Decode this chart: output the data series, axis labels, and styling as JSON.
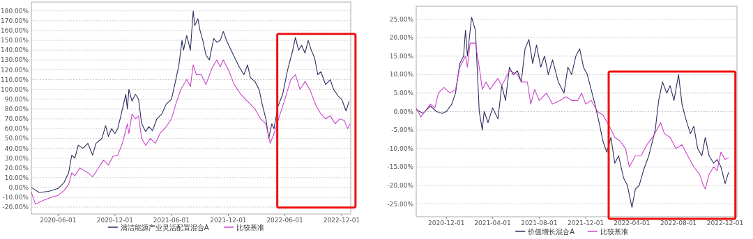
{
  "chart_data": [
    {
      "type": "line",
      "xlim": [
        "2020-03-07",
        "2022-12-30"
      ],
      "ylim": [
        -27,
        189
      ],
      "xticks": [
        "2020-06-01",
        "2020-12-01",
        "2021-06-01",
        "2021-12-01",
        "2022-06-01",
        "2022-12-01"
      ],
      "yticks": [
        {
          "value": -20,
          "label": "-20.00%"
        },
        {
          "value": -10,
          "label": "-10.00%"
        },
        {
          "value": 0,
          "label": "0.00%"
        },
        {
          "value": 10,
          "label": "10.00%"
        },
        {
          "value": 20,
          "label": "20.00%"
        },
        {
          "value": 30,
          "label": "30.00%"
        },
        {
          "value": 40,
          "label": "40.00%"
        },
        {
          "value": 50,
          "label": "50.00%"
        },
        {
          "value": 60,
          "label": "60.00%"
        },
        {
          "value": 70,
          "label": "70.00%"
        },
        {
          "value": 80,
          "label": "80.00%"
        },
        {
          "value": 90,
          "label": "90.00%"
        },
        {
          "value": 100,
          "label": "100.00%"
        },
        {
          "value": 110,
          "label": "110.00%"
        },
        {
          "value": 120,
          "label": "120.00%"
        },
        {
          "value": 130,
          "label": "130.00%"
        },
        {
          "value": 140,
          "label": "140.00%"
        },
        {
          "value": 150,
          "label": "150.00%"
        },
        {
          "value": 160,
          "label": "160.00%"
        },
        {
          "value": 170,
          "label": "170.00%"
        },
        {
          "value": 180,
          "label": "180.00%"
        }
      ],
      "grid": "y",
      "legend": "bottom",
      "series": [
        {
          "name": "清洁能源产业灵活配置混合A",
          "color": "#2d2d5f",
          "x": [
            "2020-03-07",
            "2020-04-01",
            "2020-05-01",
            "2020-06-01",
            "2020-06-20",
            "2020-07-05",
            "2020-07-15",
            "2020-07-25",
            "2020-08-05",
            "2020-08-20",
            "2020-09-05",
            "2020-09-20",
            "2020-10-01",
            "2020-10-20",
            "2020-11-01",
            "2020-11-10",
            "2020-11-20",
            "2020-12-01",
            "2020-12-10",
            "2020-12-20",
            "2021-01-05",
            "2021-01-10",
            "2021-01-15",
            "2021-01-25",
            "2021-02-05",
            "2021-02-15",
            "2021-02-25",
            "2021-03-10",
            "2021-03-20",
            "2021-04-01",
            "2021-04-15",
            "2021-05-01",
            "2021-05-15",
            "2021-06-01",
            "2021-06-15",
            "2021-06-25",
            "2021-07-05",
            "2021-07-10",
            "2021-07-20",
            "2021-08-01",
            "2021-08-10",
            "2021-08-15",
            "2021-08-25",
            "2021-09-01",
            "2021-09-10",
            "2021-09-20",
            "2021-10-01",
            "2021-10-15",
            "2021-10-25",
            "2021-11-05",
            "2021-11-15",
            "2021-11-25",
            "2021-12-10",
            "2021-12-25",
            "2022-01-05",
            "2022-01-20",
            "2022-02-01",
            "2022-02-10",
            "2022-02-25",
            "2022-03-10",
            "2022-03-20",
            "2022-04-01",
            "2022-04-10",
            "2022-04-20",
            "2022-04-27",
            "2022-05-10",
            "2022-05-25",
            "2022-06-10",
            "2022-06-25",
            "2022-07-05",
            "2022-07-15",
            "2022-07-25",
            "2022-08-05",
            "2022-08-15",
            "2022-08-25",
            "2022-09-05",
            "2022-09-15",
            "2022-09-25",
            "2022-10-10",
            "2022-10-25",
            "2022-11-05",
            "2022-11-20",
            "2022-12-01",
            "2022-12-15",
            "2022-12-25"
          ],
          "values": [
            0,
            -5,
            -4,
            -1,
            5,
            15,
            33,
            30,
            43,
            40,
            45,
            33,
            45,
            50,
            63,
            52,
            60,
            55,
            60,
            73,
            95,
            80,
            100,
            88,
            95,
            90,
            65,
            57,
            62,
            58,
            70,
            75,
            85,
            90,
            110,
            125,
            150,
            140,
            155,
            140,
            180,
            165,
            172,
            160,
            150,
            135,
            130,
            152,
            148,
            150,
            159,
            150,
            140,
            130,
            123,
            115,
            125,
            112,
            108,
            100,
            85,
            70,
            50,
            65,
            60,
            83,
            95,
            120,
            138,
            153,
            140,
            145,
            137,
            150,
            140,
            132,
            115,
            118,
            105,
            110,
            100,
            93,
            90,
            78,
            88
          ]
        },
        {
          "name": "比较基准",
          "color": "#cc44cc",
          "x": [
            "2020-03-07",
            "2020-03-20",
            "2020-04-15",
            "2020-05-10",
            "2020-06-01",
            "2020-06-20",
            "2020-07-05",
            "2020-07-15",
            "2020-07-25",
            "2020-08-10",
            "2020-09-05",
            "2020-09-20",
            "2020-10-05",
            "2020-10-25",
            "2020-11-10",
            "2020-11-25",
            "2020-12-10",
            "2020-12-25",
            "2021-01-10",
            "2021-01-15",
            "2021-01-25",
            "2021-02-05",
            "2021-02-15",
            "2021-02-25",
            "2021-03-10",
            "2021-03-25",
            "2021-04-10",
            "2021-04-25",
            "2021-05-15",
            "2021-06-01",
            "2021-06-15",
            "2021-07-01",
            "2021-07-20",
            "2021-08-01",
            "2021-08-10",
            "2021-08-20",
            "2021-09-05",
            "2021-09-20",
            "2021-10-10",
            "2021-10-25",
            "2021-11-05",
            "2021-11-15",
            "2021-12-01",
            "2021-12-20",
            "2022-01-10",
            "2022-01-25",
            "2022-02-10",
            "2022-02-25",
            "2022-03-15",
            "2022-04-01",
            "2022-04-15",
            "2022-04-27",
            "2022-05-10",
            "2022-06-01",
            "2022-06-20",
            "2022-07-05",
            "2022-07-20",
            "2022-08-05",
            "2022-08-20",
            "2022-09-10",
            "2022-09-25",
            "2022-10-10",
            "2022-10-25",
            "2022-11-10",
            "2022-11-25",
            "2022-12-10",
            "2022-12-20",
            "2022-12-28"
          ],
          "values": [
            -5,
            -17,
            -13,
            -10,
            -8,
            -3,
            3,
            15,
            12,
            20,
            15,
            11,
            18,
            28,
            23,
            32,
            33,
            45,
            65,
            55,
            75,
            70,
            73,
            50,
            43,
            50,
            45,
            55,
            62,
            70,
            85,
            100,
            110,
            103,
            125,
            115,
            115,
            105,
            122,
            130,
            123,
            130,
            120,
            105,
            95,
            90,
            85,
            80,
            70,
            65,
            45,
            55,
            68,
            90,
            110,
            115,
            100,
            108,
            100,
            83,
            75,
            70,
            73,
            65,
            70,
            68,
            60,
            65
          ]
        }
      ]
    },
    {
      "type": "line",
      "xlim": [
        "2020-09-13",
        "2023-01-01"
      ],
      "ylim": [
        -28.5,
        28.5
      ],
      "xticks": [
        "2020-12-01",
        "2021-04-01",
        "2021-08-01",
        "2021-12-01",
        "2022-04-01",
        "2022-08-01",
        "2022-12-01"
      ],
      "yticks": [
        {
          "value": -25,
          "label": "-25.00%"
        },
        {
          "value": -20,
          "label": "-20.00%"
        },
        {
          "value": -15,
          "label": "-15.00%"
        },
        {
          "value": -10,
          "label": "-10.00%"
        },
        {
          "value": -5,
          "label": "-5.00%"
        },
        {
          "value": 0,
          "label": "0.00%"
        },
        {
          "value": 5,
          "label": "5.00%"
        },
        {
          "value": 10,
          "label": "10.00%"
        },
        {
          "value": 15,
          "label": "15.00%"
        },
        {
          "value": 20,
          "label": "20.00%"
        },
        {
          "value": 25,
          "label": "25.00%"
        }
      ],
      "grid": "y",
      "legend": "bottom",
      "series": [
        {
          "name": "价值增长混合A",
          "color": "#2d2d5f",
          "x": [
            "2020-09-13",
            "2020-10-01",
            "2020-10-20",
            "2020-11-05",
            "2020-11-20",
            "2020-12-01",
            "2020-12-15",
            "2020-12-25",
            "2021-01-05",
            "2021-01-15",
            "2021-01-20",
            "2021-01-25",
            "2021-02-05",
            "2021-02-15",
            "2021-02-25",
            "2021-03-05",
            "2021-03-10",
            "2021-03-20",
            "2021-04-01",
            "2021-04-15",
            "2021-04-25",
            "2021-05-05",
            "2021-05-15",
            "2021-05-25",
            "2021-06-05",
            "2021-06-15",
            "2021-06-25",
            "2021-07-05",
            "2021-07-15",
            "2021-07-25",
            "2021-08-05",
            "2021-08-15",
            "2021-08-25",
            "2021-09-05",
            "2021-09-20",
            "2021-10-05",
            "2021-10-15",
            "2021-10-25",
            "2021-11-05",
            "2021-11-15",
            "2021-11-25",
            "2021-12-05",
            "2021-12-15",
            "2021-12-25",
            "2022-01-05",
            "2022-01-15",
            "2022-01-25",
            "2022-02-05",
            "2022-02-15",
            "2022-02-25",
            "2022-03-10",
            "2022-03-20",
            "2022-04-01",
            "2022-04-10",
            "2022-04-20",
            "2022-05-01",
            "2022-05-15",
            "2022-06-01",
            "2022-06-10",
            "2022-06-20",
            "2022-07-01",
            "2022-07-10",
            "2022-07-20",
            "2022-08-01",
            "2022-08-10",
            "2022-08-20",
            "2022-09-01",
            "2022-09-10",
            "2022-09-20",
            "2022-10-01",
            "2022-10-10",
            "2022-10-20",
            "2022-11-01",
            "2022-11-10",
            "2022-11-20",
            "2022-12-01",
            "2022-12-10"
          ],
          "values": [
            0.5,
            -0.5,
            1.5,
            0,
            -0.5,
            0,
            2,
            5,
            13,
            15,
            22,
            15,
            25.5,
            22,
            0,
            -5,
            0,
            -3,
            1,
            -2,
            7,
            3,
            12,
            10,
            11,
            8,
            17,
            19.5,
            13,
            18,
            12,
            15,
            10,
            14,
            8,
            5,
            12,
            10,
            15,
            17,
            12,
            10,
            6,
            2,
            -3,
            -8,
            -11,
            -7,
            -14,
            -12,
            -18,
            -20,
            -26,
            -21,
            -20,
            -16,
            -12,
            -5,
            3,
            8,
            5,
            7,
            3,
            10,
            2,
            -2,
            -6,
            -4,
            -10,
            -12,
            -7,
            -12,
            -14,
            -13,
            -15,
            -19.5,
            -16.5
          ]
        },
        {
          "name": "比较基准",
          "color": "#cc44cc",
          "x": [
            "2020-09-13",
            "2020-09-25",
            "2020-10-20",
            "2020-11-01",
            "2020-11-10",
            "2020-11-25",
            "2020-12-10",
            "2020-12-25",
            "2021-01-05",
            "2021-01-20",
            "2021-01-25",
            "2021-02-01",
            "2021-02-15",
            "2021-02-25",
            "2021-03-05",
            "2021-03-15",
            "2021-03-25",
            "2021-04-15",
            "2021-04-25",
            "2021-05-05",
            "2021-05-15",
            "2021-06-05",
            "2021-06-15",
            "2021-07-01",
            "2021-07-10",
            "2021-07-20",
            "2021-08-01",
            "2021-08-20",
            "2021-09-05",
            "2021-09-25",
            "2021-10-10",
            "2021-10-25",
            "2021-11-10",
            "2021-11-20",
            "2021-12-01",
            "2021-12-15",
            "2022-01-01",
            "2022-01-15",
            "2022-02-01",
            "2022-02-15",
            "2022-03-01",
            "2022-03-15",
            "2022-03-25",
            "2022-04-10",
            "2022-04-25",
            "2022-05-10",
            "2022-05-25",
            "2022-06-05",
            "2022-06-15",
            "2022-06-25",
            "2022-07-10",
            "2022-07-25",
            "2022-08-10",
            "2022-08-25",
            "2022-09-10",
            "2022-09-25",
            "2022-10-05",
            "2022-10-10",
            "2022-10-20",
            "2022-11-01",
            "2022-11-10",
            "2022-11-20",
            "2022-12-01",
            "2022-12-10"
          ],
          "values": [
            1,
            -1.5,
            2,
            1,
            5,
            6.5,
            5,
            6,
            12,
            15,
            12,
            18.5,
            18.5,
            12,
            6,
            8,
            6,
            9,
            7,
            9,
            11,
            10,
            8,
            8,
            2,
            6,
            3,
            5,
            2,
            3,
            4,
            3,
            3,
            5,
            2,
            3,
            0,
            -1,
            -4,
            -7,
            -8,
            -10,
            -15,
            -12,
            -12,
            -9,
            -7,
            -5,
            -3,
            -6,
            -7,
            -10,
            -9,
            -12,
            -15,
            -17,
            -20,
            -21,
            -17,
            -15,
            -16,
            -11,
            -13,
            -12.5
          ]
        }
      ]
    }
  ]
}
